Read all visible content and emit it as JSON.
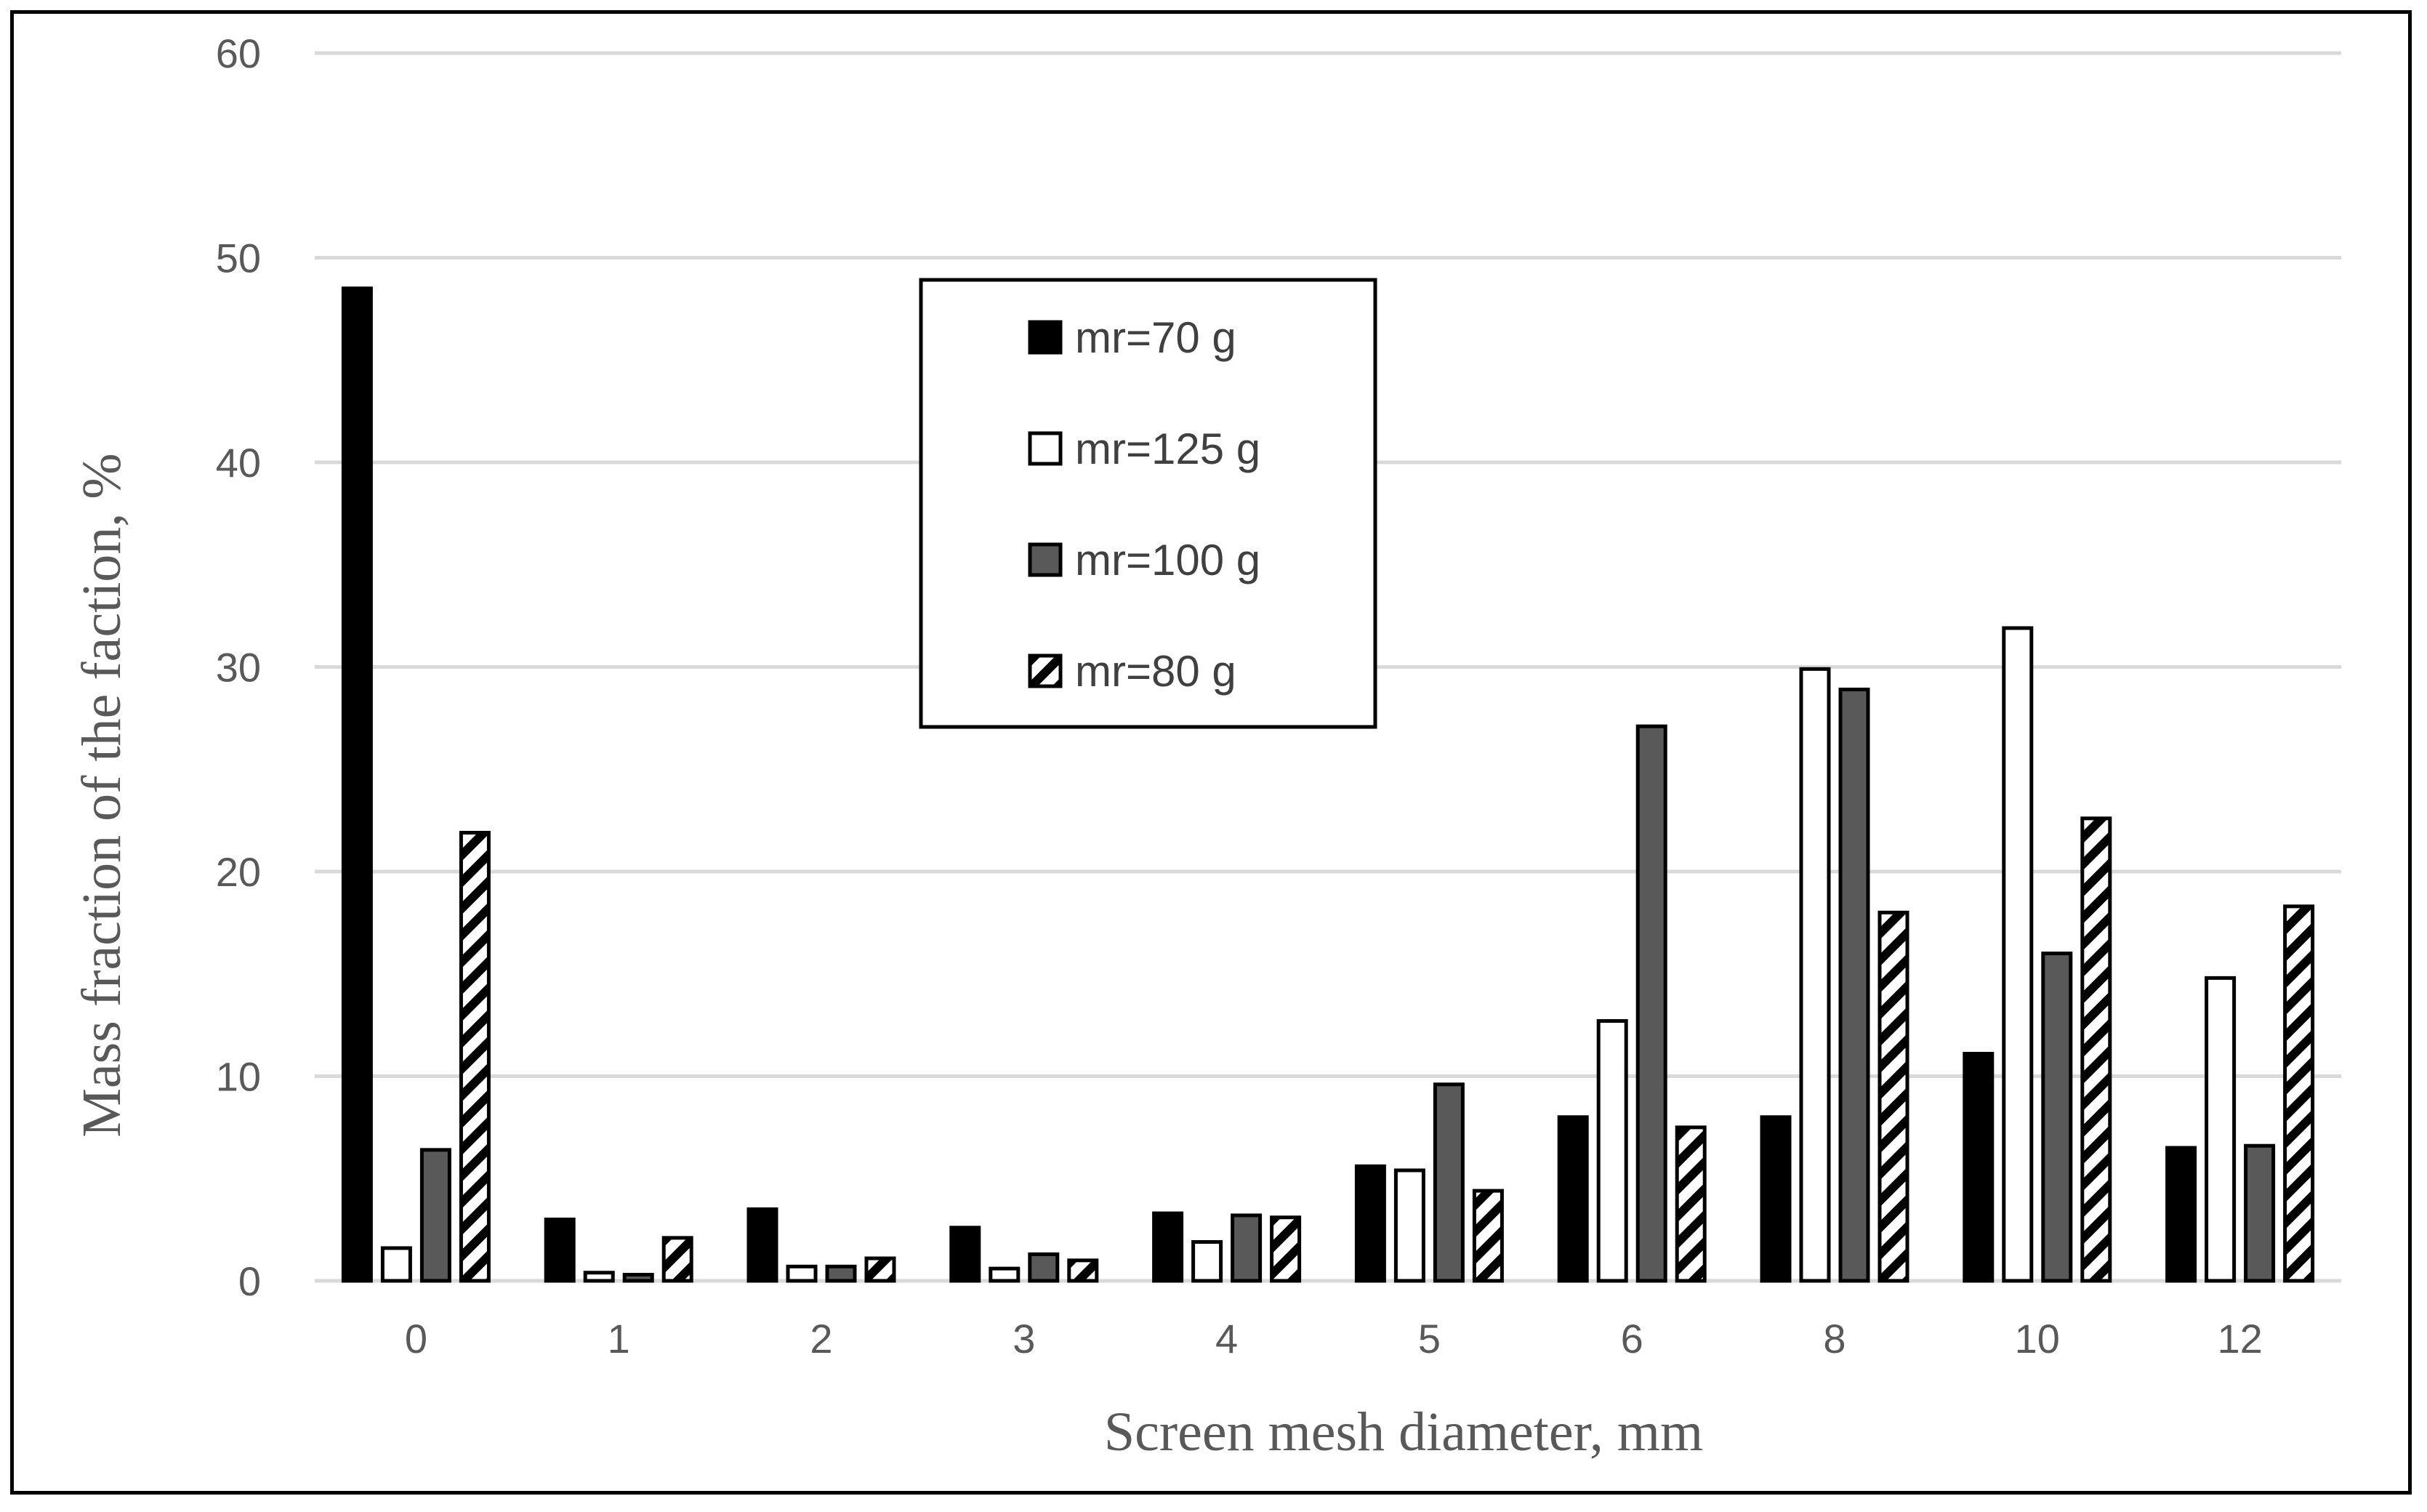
{
  "chart_data": {
    "type": "bar",
    "title": "",
    "xlabel": "Screen mesh diameter, mm",
    "ylabel": "Mass fraction of the faction, %",
    "ylim": [
      0,
      60
    ],
    "yticks": [
      0,
      10,
      20,
      30,
      40,
      50,
      60
    ],
    "grid": true,
    "legend_position": "top-center",
    "categories": [
      "0",
      "1",
      "2",
      "3",
      "4",
      "5",
      "6",
      "8",
      "10",
      "12"
    ],
    "series": [
      {
        "name": "mr=70 g",
        "fill": "#000000",
        "pattern": "solid",
        "values": [
          48.5,
          3.0,
          3.5,
          2.6,
          3.3,
          5.6,
          8.0,
          8.0,
          11.1,
          6.5
        ]
      },
      {
        "name": "mr=125 g",
        "fill": "#ffffff",
        "pattern": "solid",
        "values": [
          1.6,
          0.4,
          0.7,
          0.6,
          1.9,
          5.4,
          12.7,
          29.9,
          31.9,
          14.8
        ]
      },
      {
        "name": "mr=100 g",
        "fill": "#595959",
        "pattern": "solid",
        "values": [
          6.4,
          0.3,
          0.7,
          1.3,
          3.2,
          9.6,
          27.1,
          28.9,
          16.0,
          6.6
        ]
      },
      {
        "name": "mr=80 g",
        "fill": "#ffffff",
        "pattern": "diagonal-hatch",
        "values": [
          21.9,
          2.1,
          1.1,
          1.0,
          3.1,
          4.4,
          7.5,
          18.0,
          22.6,
          18.3
        ]
      }
    ]
  }
}
